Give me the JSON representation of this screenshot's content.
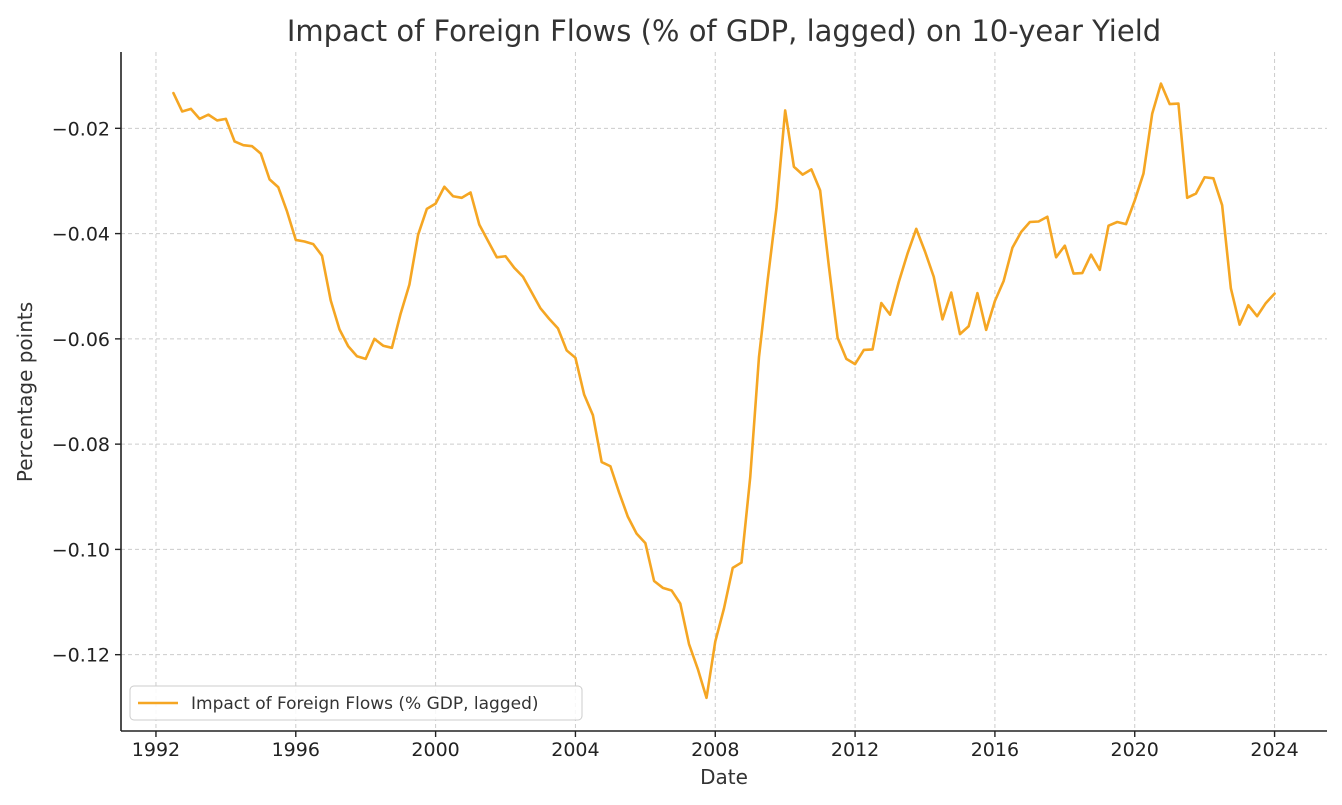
{
  "chart_data": {
    "type": "line",
    "title": "Impact of Foreign Flows (% of GDP, lagged) on 10-year Yield",
    "xlabel": "Date",
    "ylabel": "Percentage points",
    "xlim": [
      1991.0,
      2025.5
    ],
    "ylim": [
      -0.1345,
      -0.0055
    ],
    "xticks": [
      1992,
      1996,
      2000,
      2004,
      2008,
      2012,
      2016,
      2020,
      2024
    ],
    "xtick_labels": [
      "1992",
      "1996",
      "2000",
      "2004",
      "2008",
      "2012",
      "2016",
      "2020",
      "2024"
    ],
    "yticks": [
      -0.12,
      -0.1,
      -0.08,
      -0.06,
      -0.04,
      -0.02
    ],
    "ytick_labels": [
      "−0.12",
      "−0.10",
      "−0.08",
      "−0.06",
      "−0.04",
      "−0.02"
    ],
    "grid": true,
    "legend_position": "bottom-left",
    "series": [
      {
        "name": "Impact of Foreign Flows (% GDP, lagged)",
        "color": "#f5a623",
        "x": [
          1992.5,
          1992.75,
          1993.0,
          1993.25,
          1993.5,
          1993.75,
          1994.0,
          1994.25,
          1994.5,
          1994.75,
          1995.0,
          1995.25,
          1995.5,
          1995.75,
          1996.0,
          1996.25,
          1996.5,
          1996.75,
          1997.0,
          1997.25,
          1997.5,
          1997.75,
          1998.0,
          1998.25,
          1998.5,
          1998.75,
          1999.0,
          1999.25,
          1999.5,
          1999.75,
          2000.0,
          2000.25,
          2000.5,
          2000.75,
          2001.0,
          2001.25,
          2001.5,
          2001.75,
          2002.0,
          2002.25,
          2002.5,
          2002.75,
          2003.0,
          2003.25,
          2003.5,
          2003.75,
          2004.0,
          2004.25,
          2004.5,
          2004.75,
          2005.0,
          2005.25,
          2005.5,
          2005.75,
          2006.0,
          2006.25,
          2006.5,
          2006.75,
          2007.0,
          2007.25,
          2007.5,
          2007.75,
          2008.0,
          2008.25,
          2008.5,
          2008.75,
          2009.0,
          2009.25,
          2009.5,
          2009.75,
          2010.0,
          2010.25,
          2010.5,
          2010.75,
          2011.0,
          2011.25,
          2011.5,
          2011.75,
          2012.0,
          2012.25,
          2012.5,
          2012.75,
          2013.0,
          2013.25,
          2013.5,
          2013.75,
          2014.0,
          2014.25,
          2014.5,
          2014.75,
          2015.0,
          2015.25,
          2015.5,
          2015.75,
          2016.0,
          2016.25,
          2016.5,
          2016.75,
          2017.0,
          2017.25,
          2017.5,
          2017.75,
          2018.0,
          2018.25,
          2018.5,
          2018.75,
          2019.0,
          2019.25,
          2019.5,
          2019.75,
          2020.0,
          2020.25,
          2020.5,
          2020.75,
          2021.0,
          2021.25,
          2021.5,
          2021.75,
          2022.0,
          2022.25,
          2022.5,
          2022.75,
          2023.0,
          2023.25,
          2023.5,
          2023.75,
          2024.0
        ],
        "y": [
          -0.0133,
          -0.0168,
          -0.0163,
          -0.0182,
          -0.0174,
          -0.0185,
          -0.0182,
          -0.0225,
          -0.0232,
          -0.0234,
          -0.0248,
          -0.0297,
          -0.0312,
          -0.0358,
          -0.0412,
          -0.0415,
          -0.042,
          -0.0442,
          -0.0527,
          -0.0582,
          -0.0614,
          -0.0633,
          -0.0638,
          -0.06,
          -0.0613,
          -0.0617,
          -0.0552,
          -0.0497,
          -0.0402,
          -0.0353,
          -0.0343,
          -0.0311,
          -0.0329,
          -0.0332,
          -0.0322,
          -0.0383,
          -0.0414,
          -0.0445,
          -0.0443,
          -0.0465,
          -0.0482,
          -0.0512,
          -0.0542,
          -0.0562,
          -0.058,
          -0.0622,
          -0.0636,
          -0.0706,
          -0.0745,
          -0.0834,
          -0.0842,
          -0.0892,
          -0.0938,
          -0.097,
          -0.0988,
          -0.106,
          -0.1073,
          -0.1078,
          -0.1103,
          -0.118,
          -0.1227,
          -0.1282,
          -0.1175,
          -0.1112,
          -0.1035,
          -0.1025,
          -0.0863,
          -0.0635,
          -0.0488,
          -0.0352,
          -0.0166,
          -0.0273,
          -0.0288,
          -0.0278,
          -0.0318,
          -0.0462,
          -0.0598,
          -0.0638,
          -0.0648,
          -0.0621,
          -0.062,
          -0.0532,
          -0.0554,
          -0.0492,
          -0.0438,
          -0.0391,
          -0.0434,
          -0.0482,
          -0.0563,
          -0.0512,
          -0.0591,
          -0.0576,
          -0.0513,
          -0.0583,
          -0.0528,
          -0.049,
          -0.0427,
          -0.0397,
          -0.0378,
          -0.0377,
          -0.0368,
          -0.0445,
          -0.0423,
          -0.0476,
          -0.0475,
          -0.044,
          -0.0469,
          -0.0385,
          -0.0378,
          -0.0382,
          -0.0337,
          -0.0286,
          -0.0172,
          -0.0115,
          -0.0154,
          -0.0153,
          -0.0332,
          -0.0324,
          -0.0293,
          -0.0295,
          -0.0346,
          -0.0504,
          -0.0573,
          -0.0536,
          -0.0557,
          -0.0532,
          -0.0514
        ]
      }
    ]
  }
}
